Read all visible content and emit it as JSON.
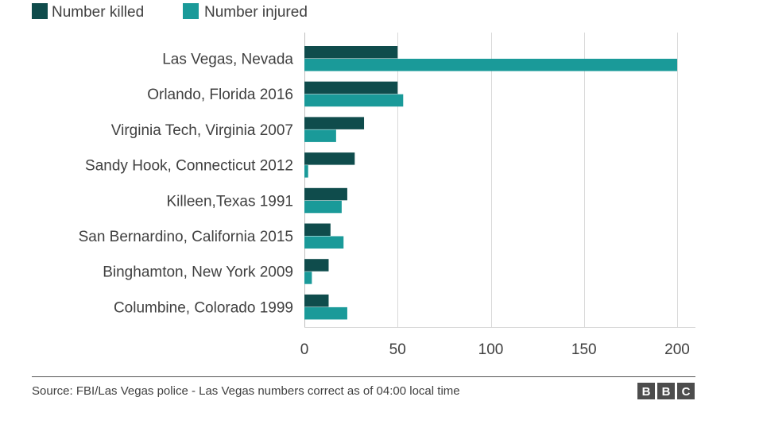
{
  "chart_data": {
    "type": "bar",
    "orientation": "horizontal",
    "categories": [
      "Las Vegas, Nevada",
      "Orlando, Florida 2016",
      "Virginia Tech, Virginia 2007",
      "Sandy Hook, Connecticut 2012",
      "Killeen,Texas 1991",
      "San Bernardino, California 2015",
      "Binghamton, New York 2009",
      "Columbine, Colorado 1999"
    ],
    "series": [
      {
        "name": "Number killed",
        "color": "#0f4c4c",
        "values": [
          50,
          50,
          32,
          27,
          23,
          14,
          13,
          13
        ]
      },
      {
        "name": "Number injured",
        "color": "#1a9a99",
        "values": [
          200,
          53,
          17,
          2,
          20,
          21,
          4,
          23
        ]
      }
    ],
    "xlim": [
      0,
      200
    ],
    "xticks": [
      0,
      50,
      100,
      150,
      200
    ],
    "grid": true,
    "legend": "top-left",
    "source": "Source: FBI/Las Vegas police - Las Vegas numbers correct as of 04:00 local time",
    "logo": [
      "B",
      "B",
      "C"
    ]
  }
}
